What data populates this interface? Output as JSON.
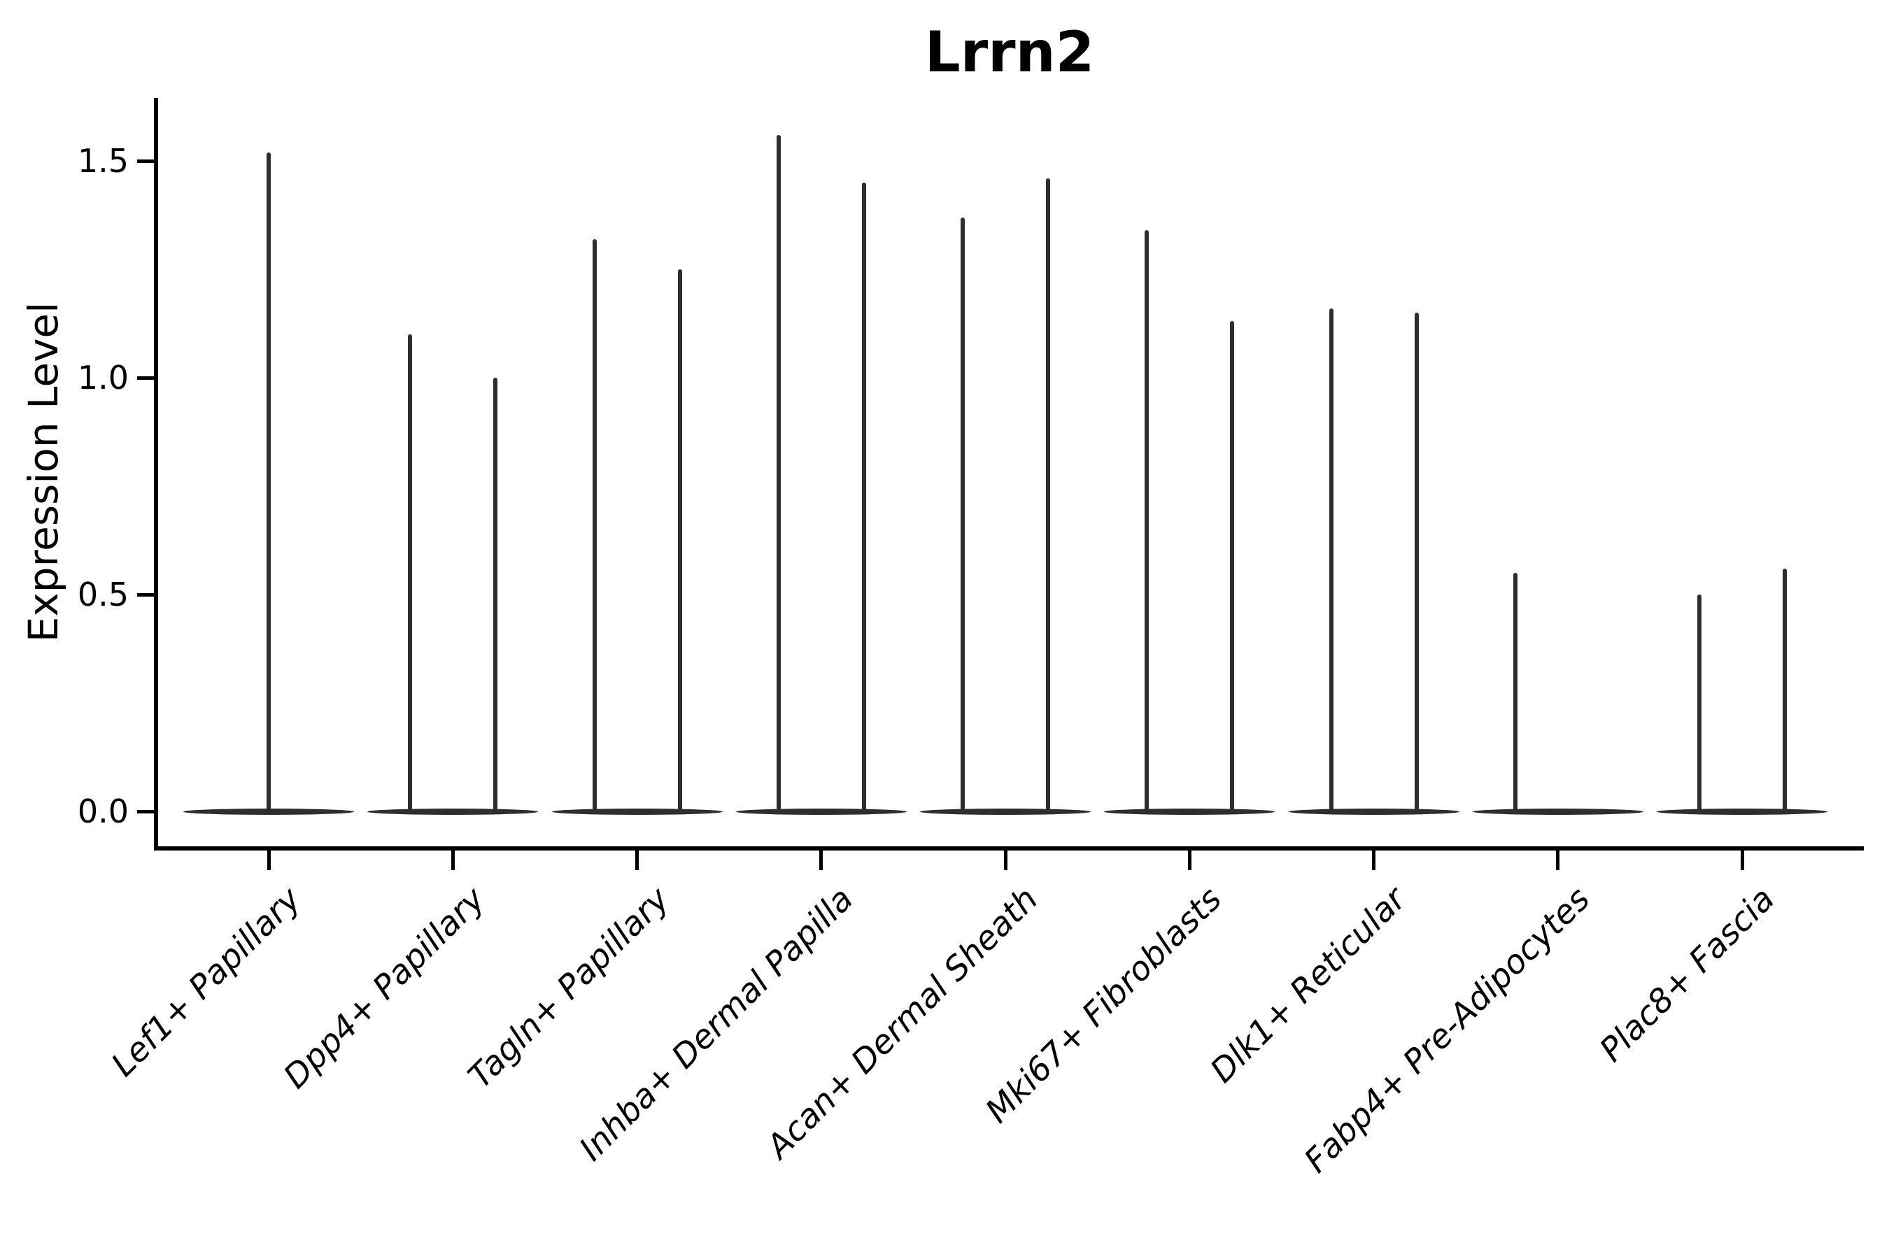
{
  "chart_data": {
    "type": "violin",
    "title": "Lrrn2",
    "xlabel": "",
    "ylabel": "Expression Level",
    "ylim": [
      0,
      1.66
    ],
    "yticks": [
      {
        "label": "0.0",
        "value": 0.0
      },
      {
        "label": "0.5",
        "value": 0.5
      },
      {
        "label": "1.0",
        "value": 1.0
      },
      {
        "label": "1.5",
        "value": 1.5
      }
    ],
    "grid": false,
    "legend": "none",
    "violin_color": "#2e2e2e",
    "axis_color": "#000000",
    "background_color": "#ffffff",
    "style_note": "sparse-expression violins: wide flat base at 0 with thin spike up to max expression",
    "categories": [
      {
        "label": "Lef1+ Papillary",
        "violins": [
          {
            "slot": "full",
            "max_expression": 1.52
          }
        ]
      },
      {
        "label": "Dpp4+ Papillary",
        "violins": [
          {
            "slot": "left",
            "max_expression": 1.1
          },
          {
            "slot": "right",
            "max_expression": 1.0
          }
        ]
      },
      {
        "label": "Tagln+ Papillary",
        "violins": [
          {
            "slot": "left",
            "max_expression": 1.32
          },
          {
            "slot": "right",
            "max_expression": 1.25
          }
        ]
      },
      {
        "label": "Inhba+ Dermal Papilla",
        "violins": [
          {
            "slot": "left",
            "max_expression": 1.56
          },
          {
            "slot": "right",
            "max_expression": 1.45
          }
        ]
      },
      {
        "label": "Acan+ Dermal Sheath",
        "violins": [
          {
            "slot": "left",
            "max_expression": 1.37
          },
          {
            "slot": "right",
            "max_expression": 1.46
          }
        ]
      },
      {
        "label": "Mki67+ Fibroblasts",
        "violins": [
          {
            "slot": "left",
            "max_expression": 1.34
          },
          {
            "slot": "right",
            "max_expression": 1.13
          }
        ]
      },
      {
        "label": "Dlk1+ Reticular",
        "violins": [
          {
            "slot": "left",
            "max_expression": 1.16
          },
          {
            "slot": "right",
            "max_expression": 1.15
          }
        ]
      },
      {
        "label": "Fabp4+ Pre-Adipocytes",
        "violins": [
          {
            "slot": "left",
            "max_expression": 0.55
          },
          {
            "slot": "right",
            "max_expression": 0.0
          }
        ]
      },
      {
        "label": "Plac8+ Fascia",
        "violins": [
          {
            "slot": "left",
            "max_expression": 0.5
          },
          {
            "slot": "right",
            "max_expression": 0.56
          }
        ]
      }
    ]
  }
}
